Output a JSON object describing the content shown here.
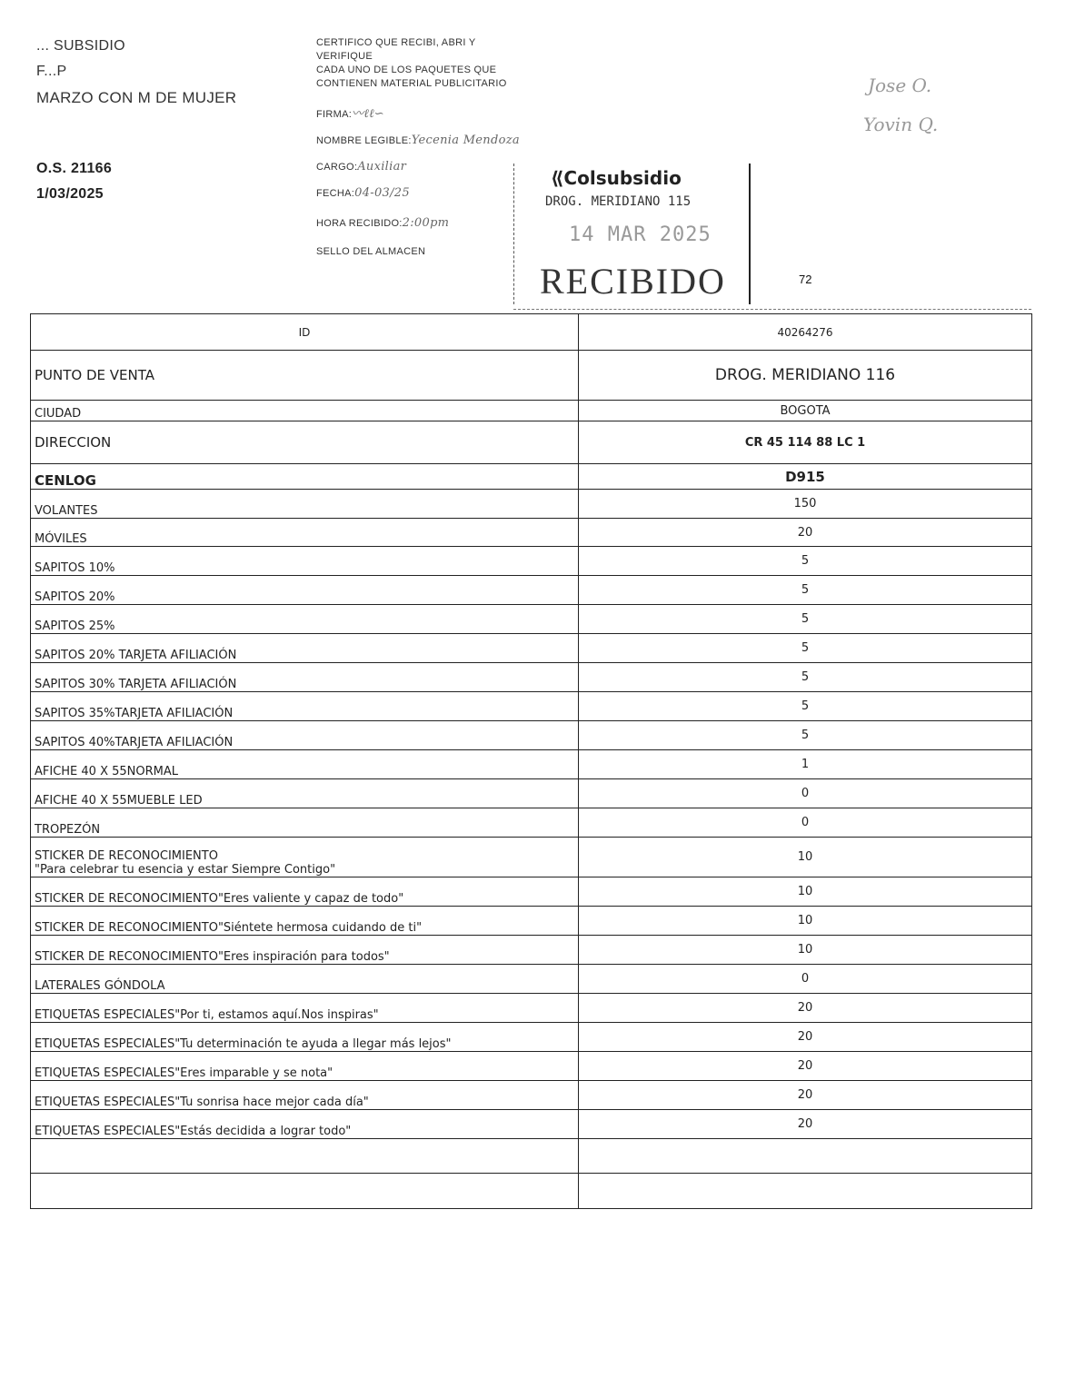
{
  "header": {
    "company": "... SUBSIDIO",
    "line2": "F...P",
    "campaign": "MARZO CON M DE MUJER",
    "os": "O.S. 21166",
    "date": "1/03/2025"
  },
  "certificate": {
    "line1": "CERTIFICO QUE RECIBI, ABRI Y",
    "line2": "VERIFIQUE",
    "line3": "CADA UNO DE LOS PAQUETES QUE",
    "line4": "CONTIENEN MATERIAL PUBLICITARIO",
    "firma_label": "FIRMA:",
    "nombre_label": "NOMBRE LEGIBLE:",
    "nombre_value": "Yecenia   Mendoza",
    "cargo_label": "CARGO:",
    "cargo_value": "Auxiliar",
    "fecha_label": "FECHA:",
    "fecha_value": "04-03/25",
    "hora_label": "HORA RECIBIDO:",
    "hora_value": "2:00pm",
    "sello_label": "SELLO DEL ALMACEN"
  },
  "handwritten_note": {
    "line1": "Jose O.",
    "line2": "Yovin Q."
  },
  "stamp": {
    "logo": "Colsubsidio",
    "store": "DROG. MERIDIANO 115",
    "date": "14 MAR 2025",
    "status": "RECIBIDO"
  },
  "page_number": "72",
  "table": {
    "rows": [
      {
        "label": "ID",
        "value": "40264276",
        "style": "id"
      },
      {
        "label": "PUNTO DE VENTA",
        "value": "DROG. MERIDIANO 116",
        "style": "big"
      },
      {
        "label": "CIUDAD",
        "value": "BOGOTA"
      },
      {
        "label": "DIRECCION",
        "value": "CR 45 114 88 LC 1",
        "style": "boldval"
      },
      {
        "label": "CENLOG",
        "value": "D915",
        "style": "bold"
      },
      {
        "label": "VOLANTES",
        "value": "150"
      },
      {
        "label": "MÓVILES",
        "value": "20"
      },
      {
        "label": "SAPITOS 10%",
        "value": "5"
      },
      {
        "label": "SAPITOS 20%",
        "value": "5"
      },
      {
        "label": "SAPITOS 25%",
        "value": "5"
      },
      {
        "label": "SAPITOS 20% TARJETA AFILIACIÓN",
        "value": "5"
      },
      {
        "label": "SAPITOS 30% TARJETA AFILIACIÓN",
        "value": "5"
      },
      {
        "label": "SAPITOS 35%TARJETA AFILIACIÓN",
        "value": "5"
      },
      {
        "label": "SAPITOS 40%TARJETA AFILIACIÓN",
        "value": "5"
      },
      {
        "label": "AFICHE 40 X 55NORMAL",
        "value": "1"
      },
      {
        "label": "AFICHE 40 X 55MUEBLE LED",
        "value": "0"
      },
      {
        "label": "TROPEZÓN",
        "value": "0"
      },
      {
        "label": "STICKER DE RECONOCIMIENTO",
        "label2": "\"Para celebrar tu esencia y estar Siempre Contigo\"",
        "value": "10"
      },
      {
        "label": "STICKER DE RECONOCIMIENTO\"Eres valiente y capaz de todo\"",
        "value": "10"
      },
      {
        "label": "STICKER DE RECONOCIMIENTO\"Siéntete hermosa cuidando de ti\"",
        "value": "10"
      },
      {
        "label": "STICKER DE RECONOCIMIENTO\"Eres inspiración para todos\"",
        "value": "10"
      },
      {
        "label": "LATERALES GÓNDOLA",
        "value": "0"
      },
      {
        "label": "ETIQUETAS ESPECIALES\"Por ti, estamos aquí.Nos inspiras\"",
        "value": "20"
      },
      {
        "label": "ETIQUETAS ESPECIALES\"Tu determinación te ayuda a llegar más lejos\"",
        "value": "20"
      },
      {
        "label": "ETIQUETAS ESPECIALES\"Eres imparable y se nota\"",
        "value": "20"
      },
      {
        "label": "ETIQUETAS ESPECIALES\"Tu sonrisa hace mejor cada día\"",
        "value": "20"
      },
      {
        "label": "ETIQUETAS ESPECIALES\"Estás decidida a lograr todo\"",
        "value": "20"
      },
      {
        "label": "",
        "value": ""
      },
      {
        "label": "",
        "value": ""
      }
    ]
  }
}
